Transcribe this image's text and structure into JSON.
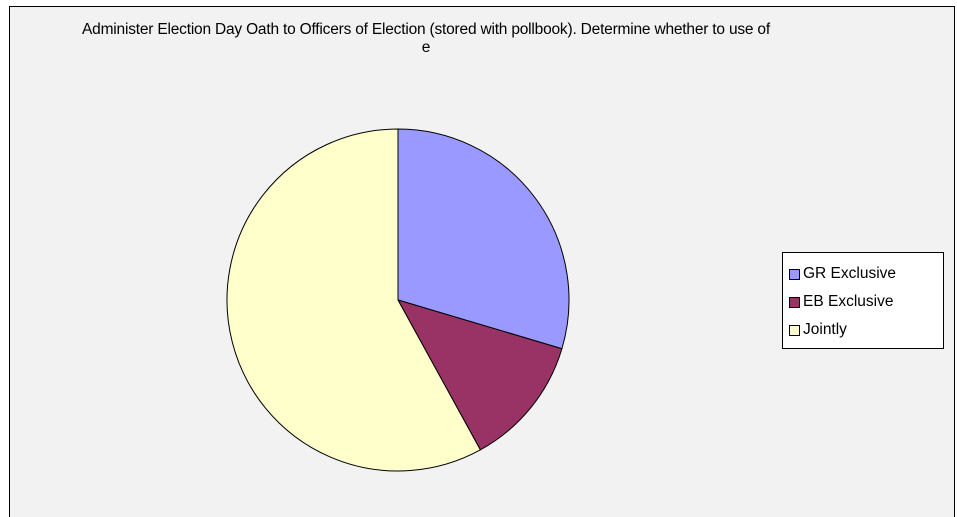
{
  "chart_data": {
    "type": "pie",
    "title": "Administer Election Day Oath to Officers of Election (stored with pollbook).  Determine whether to use of e",
    "categories": [
      "GR Exclusive",
      "EB Exclusive",
      "Jointly"
    ],
    "values": [
      29.6,
      12.4,
      58.0
    ],
    "colors": [
      "#9999ff",
      "#993366",
      "#ffffcc"
    ],
    "start_angle_deg": 0,
    "direction": "clockwise",
    "legend_position": "right"
  }
}
